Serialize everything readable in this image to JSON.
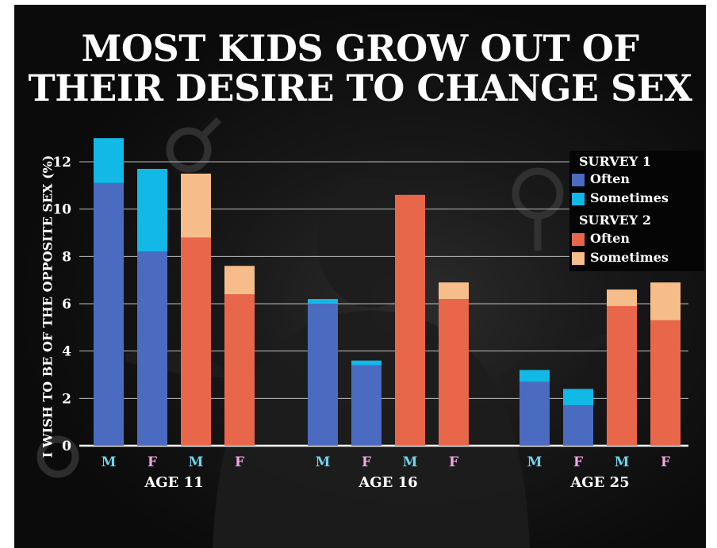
{
  "title": {
    "line1": "MOST KIDS GROW OUT OF",
    "line2": "THEIR DESIRE TO CHANGE SEX"
  },
  "colors": {
    "survey1_often": "#4a6bbf",
    "survey1_sometimes": "#12b8e6",
    "survey2_often": "#e8674b",
    "survey2_sometimes": "#f6bd8a",
    "label_male": "#6fd3ea",
    "label_female": "#f2a6e4"
  },
  "legend": {
    "survey1": {
      "heading": "SURVEY 1",
      "often": "Often",
      "sometimes": "Sometimes"
    },
    "survey2": {
      "heading": "SURVEY 2",
      "often": "Often",
      "sometimes": "Sometimes"
    }
  },
  "chart_data": {
    "type": "bar",
    "stacked": true,
    "title": "MOST KIDS GROW OUT OF THEIR DESIRE TO CHANGE SEX",
    "ylabel": "I WISH TO BE OF THE OPPOSITE SEX (%)",
    "ylim": [
      0,
      13
    ],
    "yticks": [
      0,
      2,
      4,
      6,
      8,
      10,
      12
    ],
    "grid": true,
    "legend_position": "top-right",
    "groups": [
      {
        "label": "AGE 11",
        "bars": [
          {
            "sex": "M",
            "survey": 1,
            "often": 11.1,
            "sometimes": 1.9
          },
          {
            "sex": "F",
            "survey": 1,
            "often": 8.2,
            "sometimes": 3.5
          },
          {
            "sex": "M",
            "survey": 2,
            "often": 8.8,
            "sometimes": 2.7
          },
          {
            "sex": "F",
            "survey": 2,
            "often": 6.4,
            "sometimes": 1.2
          }
        ]
      },
      {
        "label": "AGE 16",
        "bars": [
          {
            "sex": "M",
            "survey": 1,
            "often": 6.0,
            "sometimes": 0.2
          },
          {
            "sex": "F",
            "survey": 1,
            "often": 3.4,
            "sometimes": 0.2
          },
          {
            "sex": "M",
            "survey": 2,
            "often": 10.6,
            "sometimes": 0.0
          },
          {
            "sex": "F",
            "survey": 2,
            "often": 6.2,
            "sometimes": 0.7
          }
        ]
      },
      {
        "label": "AGE 25",
        "bars": [
          {
            "sex": "M",
            "survey": 1,
            "often": 2.7,
            "sometimes": 0.5
          },
          {
            "sex": "F",
            "survey": 1,
            "often": 1.7,
            "sometimes": 0.7
          },
          {
            "sex": "M",
            "survey": 2,
            "often": 5.9,
            "sometimes": 0.7
          },
          {
            "sex": "F",
            "survey": 2,
            "often": 5.3,
            "sometimes": 1.6
          }
        ]
      }
    ]
  }
}
